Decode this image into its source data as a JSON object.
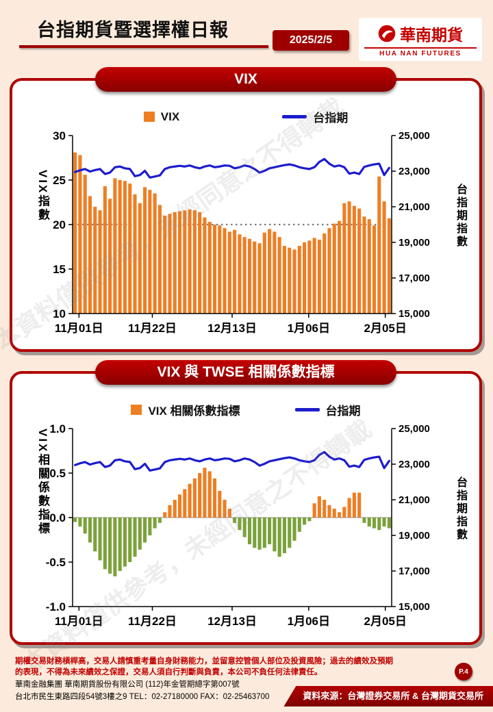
{
  "page": {
    "bg": "#FCEBDC"
  },
  "colors": {
    "accent": "#A00000",
    "bar_orange": "#EE7E23",
    "bar_green": "#7BA23B",
    "line_blue": "#1C1CCE"
  },
  "watermark": "本資料僅供參考，未經同意之不得轉載",
  "header": {
    "title": "台指期貨暨選擇權日報",
    "date_badge": "2025/2/5",
    "logo": {
      "name_zh": "華南期貨",
      "name_en": "HUA NAN FUTURES"
    }
  },
  "panels": [
    {
      "title": "VIX"
    },
    {
      "title": "VIX 與 TWSE 相關係數指標"
    }
  ],
  "chart_data": [
    {
      "type": "bar+line",
      "title": "VIX",
      "legend": [
        {
          "label": "VIX",
          "swatch": "bar",
          "color": "#EE7E23"
        },
        {
          "label": "台指期",
          "swatch": "line",
          "color": "#1C1CCE"
        }
      ],
      "x_tick_labels": [
        "11月01日",
        "11月22日",
        "12月13日",
        "1月06日",
        "2月05日"
      ],
      "x_tick_pos": [
        0.02,
        0.25,
        0.5,
        0.74,
        0.98
      ],
      "left_axis": {
        "label": "VIX指數",
        "min": 10,
        "max": 30,
        "ticks": [
          "30",
          "25",
          "20",
          "15",
          "10"
        ]
      },
      "right_axis": {
        "label": "台指期指數",
        "min": 15000,
        "max": 25000,
        "ticks": [
          "25,000",
          "23,000",
          "21,000",
          "19,000",
          "17,000",
          "15,000"
        ]
      },
      "ref_line": 20,
      "bar_base": 10,
      "grid": false,
      "legend_position": "top",
      "series": [
        {
          "name": "VIX",
          "type": "bar",
          "axis": "left",
          "color": "#EE7E23",
          "values": [
            28.1,
            27.8,
            25.6,
            23.2,
            22.0,
            21.6,
            24.3,
            22.9,
            25.2,
            25.0,
            24.9,
            24.6,
            23.4,
            22.4,
            24.2,
            23.9,
            23.5,
            22.2,
            21.0,
            21.2,
            21.4,
            21.5,
            21.6,
            21.7,
            21.6,
            21.4,
            20.8,
            20.3,
            20.0,
            19.9,
            19.6,
            19.2,
            19.4,
            18.9,
            18.6,
            18.4,
            18.1,
            17.9,
            19.1,
            19.5,
            19.2,
            18.6,
            17.6,
            17.4,
            17.2,
            17.6,
            18.0,
            18.2,
            18.5,
            18.3,
            19.0,
            19.6,
            20.1,
            20.4,
            22.4,
            22.6,
            22.1,
            21.8,
            20.9,
            20.6,
            19.9,
            25.4,
            22.6,
            20.7
          ]
        },
        {
          "name": "台指期",
          "type": "line",
          "axis": "right",
          "color": "#1C1CCE",
          "values": [
            22950,
            23050,
            23120,
            22980,
            23060,
            23120,
            22840,
            22920,
            23220,
            23260,
            23160,
            23120,
            22720,
            22780,
            23020,
            22640,
            22700,
            22760,
            23120,
            23220,
            23260,
            23300,
            23260,
            23320,
            23220,
            23160,
            23260,
            23320,
            23220,
            23260,
            23320,
            23300,
            23160,
            23220,
            23320,
            23260,
            23120,
            22920,
            23020,
            23160,
            23220,
            23280,
            23340,
            23380,
            23320,
            23220,
            23160,
            23120,
            23220,
            23520,
            23680,
            23420,
            23260,
            23320,
            23220,
            22860,
            22920,
            22840,
            23240,
            23320,
            23380,
            23420,
            22780,
            23180
          ]
        }
      ]
    },
    {
      "type": "bar+line",
      "title": "VIX 與 TWSE 相關係數指標",
      "legend": [
        {
          "label": "VIX 相關係數指標",
          "swatch": "bar",
          "color": "#EE7E23"
        },
        {
          "label": "台指期",
          "swatch": "line",
          "color": "#1C1CCE"
        }
      ],
      "x_tick_labels": [
        "11月01日",
        "11月22日",
        "12月13日",
        "1月06日",
        "2月05日"
      ],
      "x_tick_pos": [
        0.02,
        0.25,
        0.5,
        0.74,
        0.98
      ],
      "left_axis": {
        "label": "VIX相關係數指標",
        "min": -1.0,
        "max": 1.0,
        "ticks": [
          "1.0",
          "0.5",
          "0.0",
          "-0.5",
          "-1.0"
        ]
      },
      "right_axis": {
        "label": "台指期指數",
        "min": 15000,
        "max": 25000,
        "ticks": [
          "25,000",
          "23,000",
          "21,000",
          "19,000",
          "17,000",
          "15,000"
        ]
      },
      "zero_line": true,
      "bar_base": 0,
      "grid": false,
      "legend_position": "top",
      "series": [
        {
          "name": "VIX 相關係數指標",
          "type": "bar",
          "axis": "left",
          "color": "#EE7E23",
          "neg_color": "#7BA23B",
          "values": [
            -0.05,
            -0.1,
            -0.18,
            -0.28,
            -0.38,
            -0.48,
            -0.58,
            -0.63,
            -0.66,
            -0.6,
            -0.55,
            -0.5,
            -0.44,
            -0.36,
            -0.28,
            -0.2,
            -0.12,
            -0.06,
            0.06,
            0.14,
            0.2,
            0.26,
            0.32,
            0.38,
            0.44,
            0.5,
            0.56,
            0.52,
            0.44,
            0.3,
            0.2,
            0.1,
            -0.06,
            -0.14,
            -0.22,
            -0.3,
            -0.34,
            -0.36,
            -0.34,
            -0.3,
            -0.38,
            -0.44,
            -0.4,
            -0.34,
            -0.26,
            -0.16,
            -0.08,
            -0.04,
            0.16,
            0.24,
            0.2,
            0.14,
            0.1,
            0.06,
            0.12,
            0.22,
            0.28,
            0.28,
            -0.06,
            -0.1,
            -0.12,
            -0.14,
            -0.1,
            -0.12
          ]
        },
        {
          "name": "台指期",
          "type": "line",
          "axis": "right",
          "color": "#1C1CCE",
          "values": [
            22950,
            23050,
            23120,
            22980,
            23060,
            23120,
            22840,
            22920,
            23220,
            23260,
            23160,
            23120,
            22720,
            22780,
            23020,
            22640,
            22700,
            22760,
            23120,
            23220,
            23260,
            23300,
            23260,
            23320,
            23220,
            23160,
            23260,
            23320,
            23220,
            23260,
            23320,
            23300,
            23160,
            23220,
            23320,
            23260,
            23120,
            22920,
            23020,
            23160,
            23220,
            23280,
            23340,
            23380,
            23320,
            23220,
            23160,
            23120,
            23220,
            23520,
            23680,
            23420,
            23260,
            23320,
            23220,
            22860,
            22920,
            22840,
            23240,
            23320,
            23380,
            23420,
            22780,
            23180
          ]
        }
      ]
    }
  ],
  "footer": {
    "disclaimer_line1": "期權交易財務槓桿高，交易人請慎重考量自身財務能力，並留意控管個人部位及投資風險；過去的績效及預期",
    "disclaimer_line2": "的表現，不得為未來績效之保證，交易人須自行判斷與負責，本公司不負任何法律責任。",
    "company_line1": "華南金融集團 華南期貨股份有限公司 (112)年金管期總字第007號",
    "company_line2": "台北市民生東路四段54號3樓之9  TEL：02-27180000  FAX：02-25463700",
    "page_badge": "P.4",
    "source": "資料來源：台灣證券交易所 & 台灣期貨交易所"
  }
}
